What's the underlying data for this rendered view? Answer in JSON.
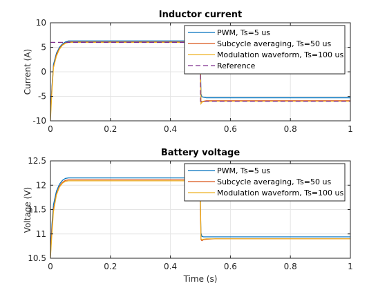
{
  "figure": {
    "background": "#ffffff",
    "axes_face": "#ffffff",
    "grid_color": "#e5e5e5",
    "axis_color": "#262626"
  },
  "chart_data": [
    {
      "type": "line",
      "title": "Inductor current",
      "xlabel": "",
      "ylabel": "Current (A)",
      "xlim": [
        0,
        1
      ],
      "ylim": [
        -10,
        10
      ],
      "xticks": [
        0,
        0.2,
        0.4,
        0.6,
        0.8,
        1
      ],
      "xtick_labels": [
        "0",
        "0.2",
        "0.4",
        "0.6",
        "0.8",
        "1"
      ],
      "yticks": [
        -10,
        -5,
        0,
        5,
        10
      ],
      "ytick_labels": [
        "-10",
        "-5",
        "0",
        "5",
        "10"
      ],
      "grid": true,
      "legend_position": "top-right",
      "series": [
        {
          "name": "PWM, Ts=5 us",
          "color": "#0072BD",
          "dash": "solid",
          "x": [
            0,
            0.005,
            0.01,
            0.02,
            0.03,
            0.04,
            0.05,
            0.06,
            0.1,
            0.2,
            0.3,
            0.4,
            0.49,
            0.499,
            0.5,
            0.502,
            0.505,
            0.51,
            0.52,
            0.55,
            0.6,
            0.8,
            1.0
          ],
          "y": [
            -8,
            -3,
            1.5,
            3.8,
            5.0,
            5.7,
            6.1,
            6.3,
            6.3,
            6.3,
            6.3,
            6.3,
            6.3,
            6.3,
            2,
            -4.5,
            -5.1,
            -5.2,
            -5.3,
            -5.3,
            -5.3,
            -5.3,
            -5.3
          ]
        },
        {
          "name": "Subcycle averaging, Ts=50 us",
          "color": "#D95319",
          "dash": "solid",
          "x": [
            0,
            0.005,
            0.01,
            0.02,
            0.03,
            0.04,
            0.05,
            0.06,
            0.1,
            0.2,
            0.3,
            0.4,
            0.49,
            0.499,
            0.5,
            0.502,
            0.505,
            0.51,
            0.52,
            0.55,
            0.6,
            0.8,
            1.0
          ],
          "y": [
            -9,
            -3.5,
            1.0,
            3.5,
            4.8,
            5.5,
            5.9,
            6.1,
            6.1,
            6.1,
            6.1,
            6.1,
            6.1,
            6.1,
            1,
            -6.3,
            -6.1,
            -6.0,
            -5.9,
            -5.9,
            -5.9,
            -5.9,
            -5.9
          ]
        },
        {
          "name": "Modulation waveform, Ts=100 us",
          "color": "#EDB120",
          "dash": "solid",
          "x": [
            0,
            0.005,
            0.01,
            0.02,
            0.03,
            0.04,
            0.05,
            0.06,
            0.1,
            0.2,
            0.3,
            0.4,
            0.49,
            0.499,
            0.5,
            0.502,
            0.505,
            0.51,
            0.52,
            0.55,
            0.6,
            0.8,
            1.0
          ],
          "y": [
            -10,
            -4,
            0.8,
            3.2,
            4.6,
            5.4,
            5.8,
            6.0,
            6.0,
            6.0,
            6.0,
            6.0,
            6.0,
            6.0,
            0,
            -6.5,
            -6.2,
            -6.1,
            -6.0,
            -6.0,
            -6.0,
            -6.0,
            -6.0
          ]
        },
        {
          "name": "Reference",
          "color": "#7E2F8E",
          "dash": "dashed",
          "x": [
            0,
            0.5,
            0.5,
            1.0
          ],
          "y": [
            6,
            6,
            -6,
            -6
          ]
        }
      ]
    },
    {
      "type": "line",
      "title": "Battery voltage",
      "xlabel": "Time (s)",
      "ylabel": "Voltage (V)",
      "xlim": [
        0,
        1
      ],
      "ylim": [
        10.5,
        12.5
      ],
      "xticks": [
        0,
        0.2,
        0.4,
        0.6,
        0.8,
        1
      ],
      "xtick_labels": [
        "0",
        "0.2",
        "0.4",
        "0.6",
        "0.8",
        "1"
      ],
      "yticks": [
        10.5,
        11,
        11.5,
        12,
        12.5
      ],
      "ytick_labels": [
        "10.5",
        "11",
        "11.5",
        "12",
        "12.5"
      ],
      "grid": true,
      "legend_position": "top-right",
      "series": [
        {
          "name": "PWM, Ts=5 us",
          "color": "#0072BD",
          "dash": "solid",
          "x": [
            0,
            0.005,
            0.01,
            0.02,
            0.03,
            0.04,
            0.05,
            0.06,
            0.1,
            0.2,
            0.3,
            0.4,
            0.499,
            0.5,
            0.502,
            0.505,
            0.51,
            0.52,
            0.55,
            0.6,
            0.8,
            1.0
          ],
          "y": [
            10.6,
            11.2,
            11.6,
            11.88,
            12.02,
            12.1,
            12.14,
            12.15,
            12.15,
            12.15,
            12.15,
            12.15,
            12.15,
            11.5,
            11.02,
            10.95,
            10.94,
            10.94,
            10.94,
            10.94,
            10.94,
            10.94
          ]
        },
        {
          "name": "Subcycle averaging, Ts=50 us",
          "color": "#D95319",
          "dash": "solid",
          "x": [
            0,
            0.005,
            0.01,
            0.02,
            0.03,
            0.04,
            0.05,
            0.06,
            0.1,
            0.2,
            0.3,
            0.4,
            0.499,
            0.5,
            0.502,
            0.505,
            0.51,
            0.52,
            0.55,
            0.6,
            0.8,
            1.0
          ],
          "y": [
            10.55,
            11.1,
            11.5,
            11.82,
            11.98,
            12.06,
            12.1,
            12.11,
            12.11,
            12.11,
            12.11,
            12.11,
            12.11,
            11.4,
            10.88,
            10.86,
            10.88,
            10.89,
            10.9,
            10.9,
            10.9,
            10.9
          ]
        },
        {
          "name": "Modulation waveform, Ts=100 us",
          "color": "#EDB120",
          "dash": "solid",
          "x": [
            0,
            0.005,
            0.01,
            0.02,
            0.03,
            0.04,
            0.05,
            0.06,
            0.1,
            0.2,
            0.3,
            0.4,
            0.499,
            0.5,
            0.502,
            0.505,
            0.51,
            0.52,
            0.55,
            0.6,
            0.8,
            1.0
          ],
          "y": [
            10.5,
            11.0,
            11.45,
            11.8,
            11.96,
            12.04,
            12.08,
            12.09,
            12.09,
            12.09,
            12.09,
            12.09,
            12.09,
            11.8,
            10.9,
            10.88,
            10.89,
            10.9,
            10.9,
            10.9,
            10.9,
            10.9
          ]
        }
      ]
    }
  ]
}
